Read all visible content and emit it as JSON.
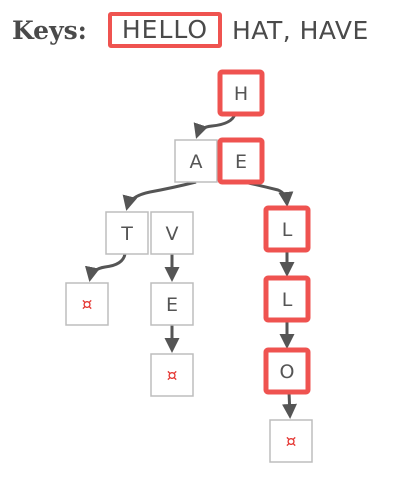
{
  "header": {
    "label": "Keys:",
    "highlighted_key": "HELLO",
    "other_keys": "HAT, HAVE"
  },
  "trie": {
    "terminal_symbol": "¤",
    "nodes": [
      {
        "id": "H",
        "label": "H",
        "highlighted": true
      },
      {
        "id": "A",
        "label": "A",
        "highlighted": false
      },
      {
        "id": "E1",
        "label": "E",
        "highlighted": true
      },
      {
        "id": "T",
        "label": "T",
        "highlighted": false
      },
      {
        "id": "V",
        "label": "V",
        "highlighted": false
      },
      {
        "id": "L1",
        "label": "L",
        "highlighted": true
      },
      {
        "id": "L2",
        "label": "L",
        "highlighted": true
      },
      {
        "id": "O",
        "label": "O",
        "highlighted": true
      },
      {
        "id": "E2",
        "label": "E",
        "highlighted": false
      },
      {
        "id": "ENDT",
        "label": "¤",
        "terminal": true
      },
      {
        "id": "ENDE",
        "label": "¤",
        "terminal": true
      },
      {
        "id": "ENDO",
        "label": "¤",
        "terminal": true
      }
    ],
    "edges": [
      [
        "H",
        "A"
      ],
      [
        "E1",
        "L1"
      ],
      [
        "A",
        "T"
      ],
      [
        "T",
        "ENDT"
      ],
      [
        "V",
        "E2"
      ],
      [
        "E2",
        "ENDE"
      ],
      [
        "L1",
        "L2"
      ],
      [
        "L2",
        "O"
      ],
      [
        "O",
        "ENDO"
      ]
    ],
    "colors": {
      "highlight": "#ef5350",
      "border": "#bdbdbd",
      "arrow": "#555555",
      "terminal": "#e53935"
    }
  }
}
